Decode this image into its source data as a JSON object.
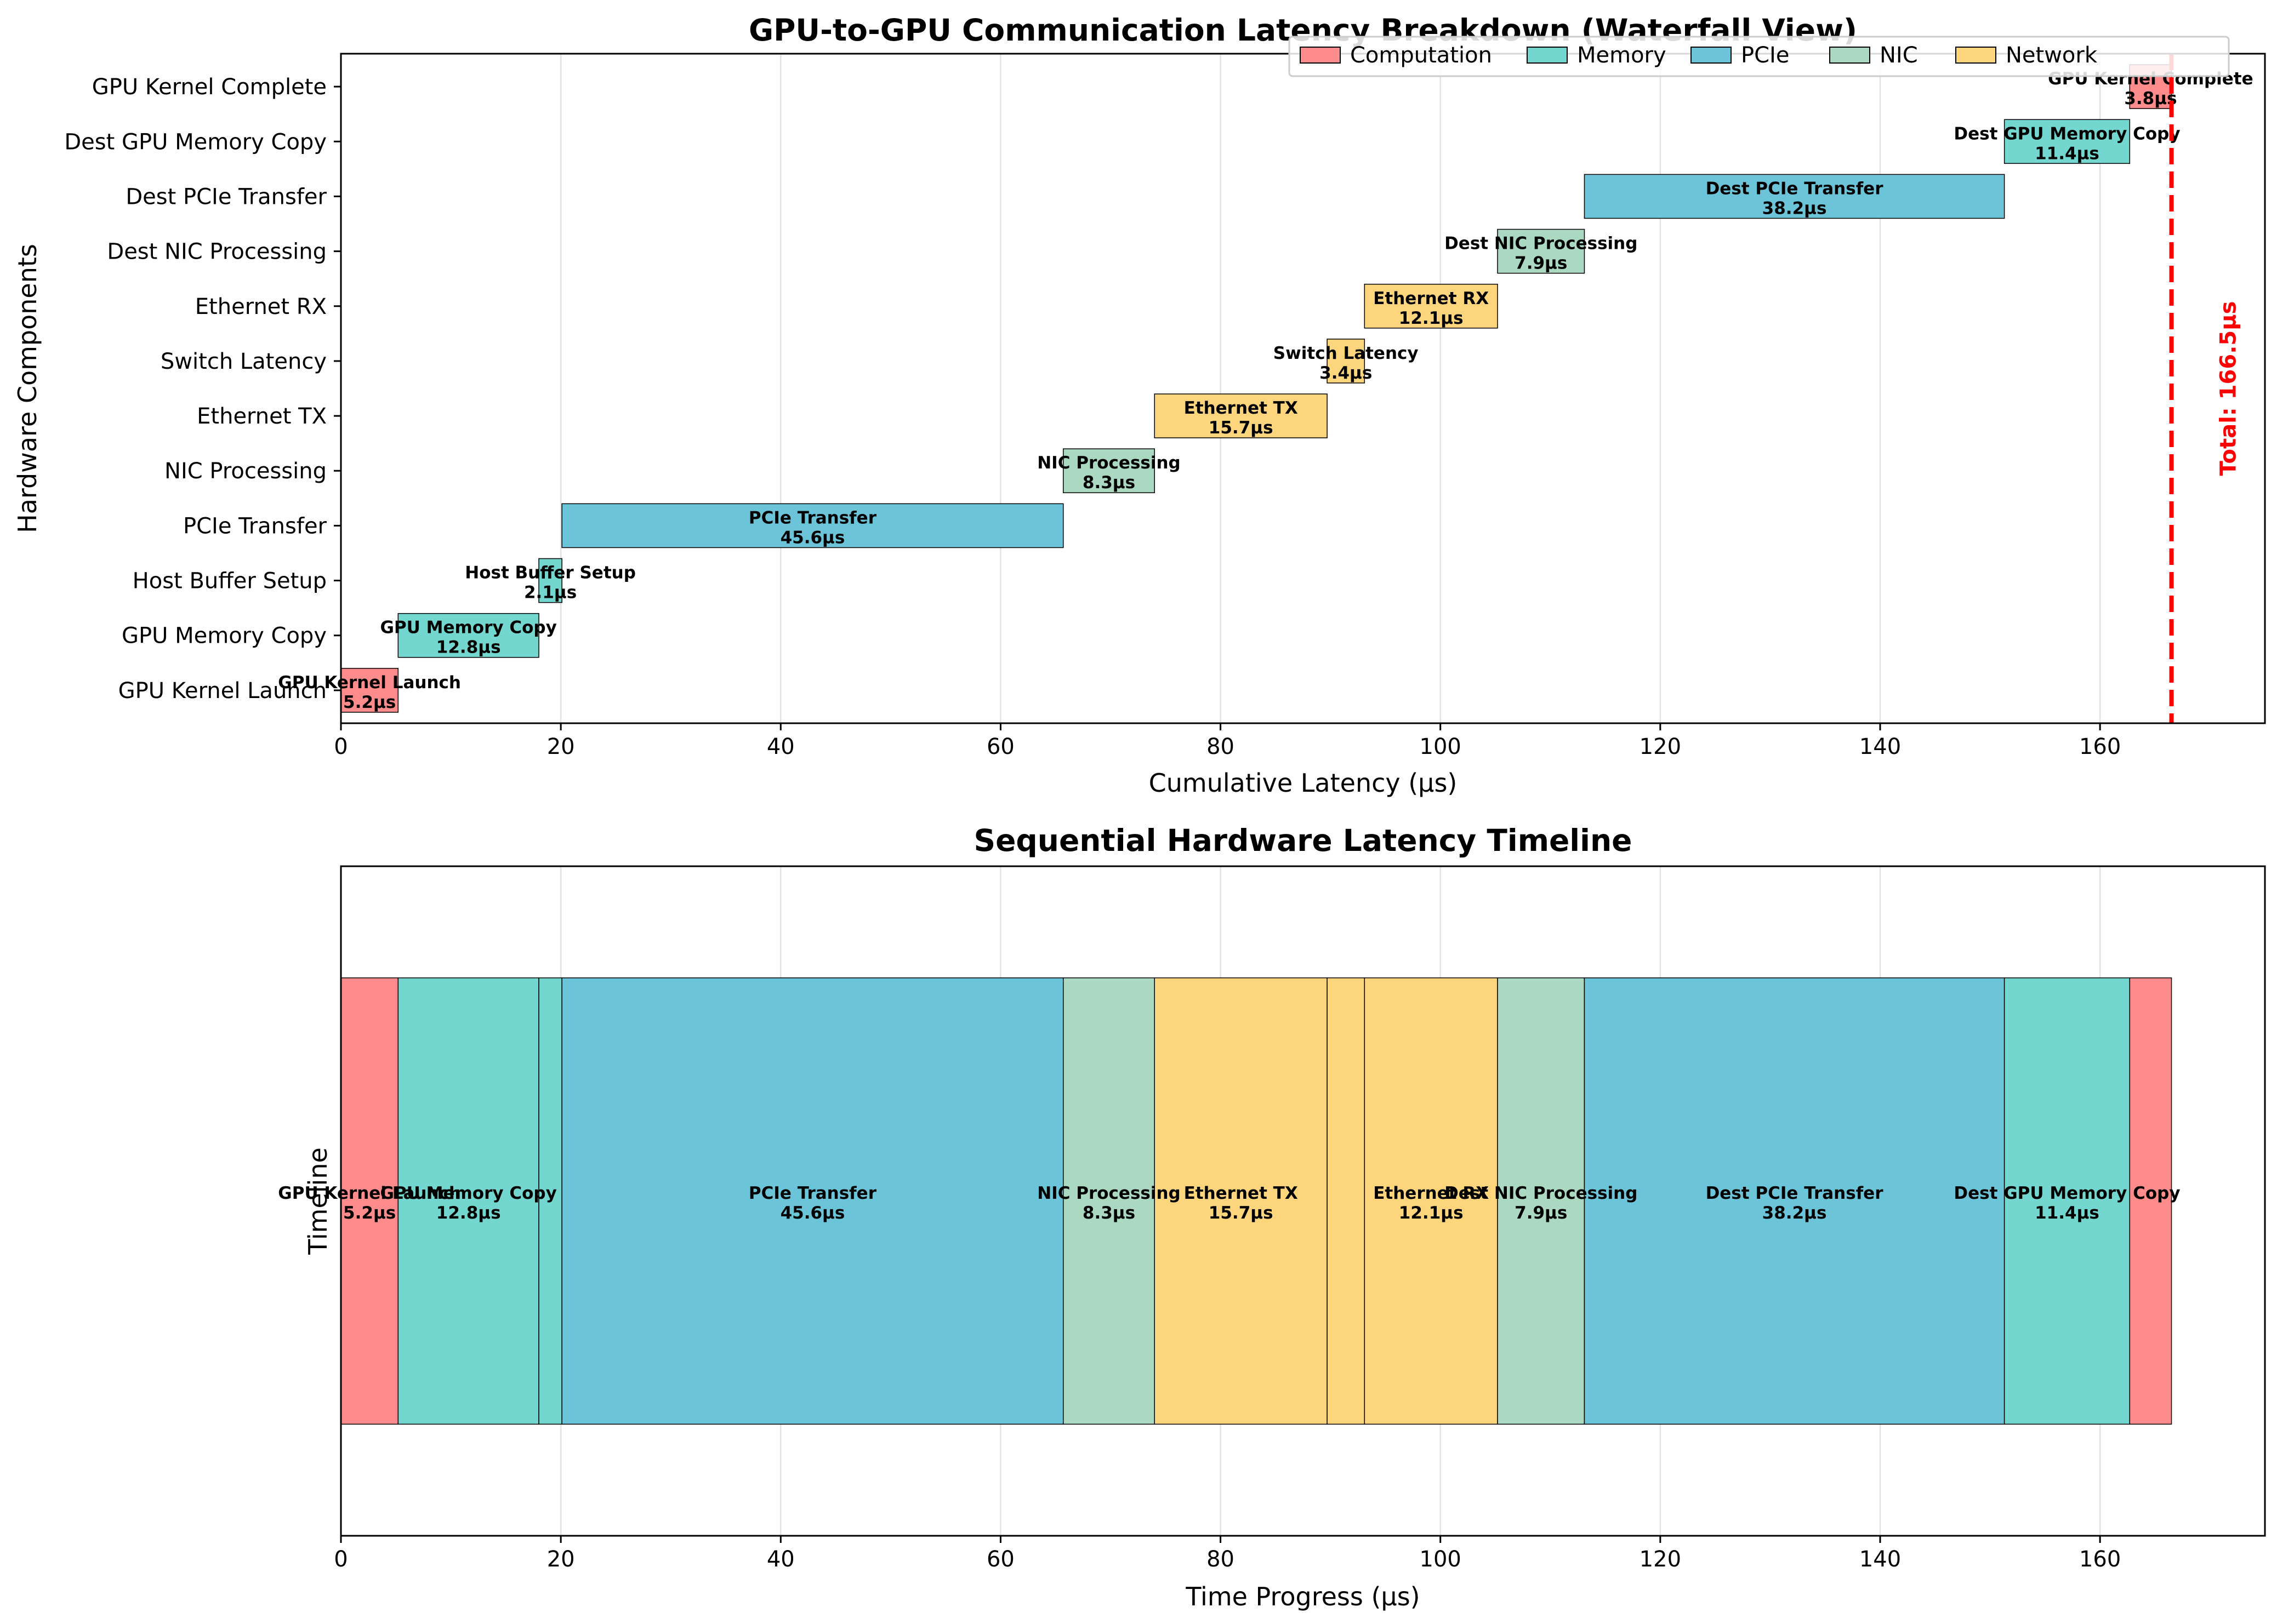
{
  "chart_data": [
    {
      "type": "waterfall",
      "title": "GPU-to-GPU Communication Latency Breakdown (Waterfall View)",
      "xlabel": "Cumulative Latency (μs)",
      "ylabel": "Hardware Components",
      "xlim": [
        0,
        175
      ],
      "xticks": [
        0,
        20,
        40,
        60,
        80,
        100,
        120,
        140,
        160
      ],
      "grid": "x",
      "legend": {
        "placement": "top-right",
        "entries": [
          {
            "label": "Computation",
            "color": "#FF8C8C"
          },
          {
            "label": "Memory",
            "color": "#74D7CF"
          },
          {
            "label": "PCIe",
            "color": "#6CC4D9"
          },
          {
            "label": "NIC",
            "color": "#ABD8C1"
          },
          {
            "label": "Network",
            "color": "#FCD57D"
          }
        ]
      },
      "components": [
        {
          "name": "GPU Kernel Launch",
          "latency": 5.2,
          "label": "5.2μs",
          "category": "Computation"
        },
        {
          "name": "GPU Memory Copy",
          "latency": 12.8,
          "label": "12.8μs",
          "category": "Memory"
        },
        {
          "name": "Host Buffer Setup",
          "latency": 2.1,
          "label": "2.1μs",
          "category": "Memory"
        },
        {
          "name": "PCIe Transfer",
          "latency": 45.6,
          "label": "45.6μs",
          "category": "PCIe"
        },
        {
          "name": "NIC Processing",
          "latency": 8.3,
          "label": "8.3μs",
          "category": "NIC"
        },
        {
          "name": "Ethernet TX",
          "latency": 15.7,
          "label": "15.7μs",
          "category": "Network"
        },
        {
          "name": "Switch Latency",
          "latency": 3.4,
          "label": "3.4μs",
          "category": "Network"
        },
        {
          "name": "Ethernet RX",
          "latency": 12.1,
          "label": "12.1μs",
          "category": "Network"
        },
        {
          "name": "Dest NIC Processing",
          "latency": 7.9,
          "label": "7.9μs",
          "category": "NIC"
        },
        {
          "name": "Dest PCIe Transfer",
          "latency": 38.2,
          "label": "38.2μs",
          "category": "PCIe"
        },
        {
          "name": "Dest GPU Memory Copy",
          "latency": 11.4,
          "label": "11.4μs",
          "category": "Memory"
        },
        {
          "name": "GPU Kernel Complete",
          "latency": 3.8,
          "label": "3.8μs",
          "category": "Computation"
        }
      ],
      "total": {
        "value": 166.5,
        "label": "Total: 166.5μs",
        "color": "#FF0000"
      }
    },
    {
      "type": "timeline",
      "title": "Sequential Hardware Latency Timeline",
      "xlabel": "Time Progress (μs)",
      "ylabel": "Timeline",
      "xlim": [
        0,
        175
      ],
      "xticks": [
        0,
        20,
        40,
        60,
        80,
        100,
        120,
        140,
        160
      ],
      "grid": "x",
      "min_label_latency": 5
    }
  ]
}
